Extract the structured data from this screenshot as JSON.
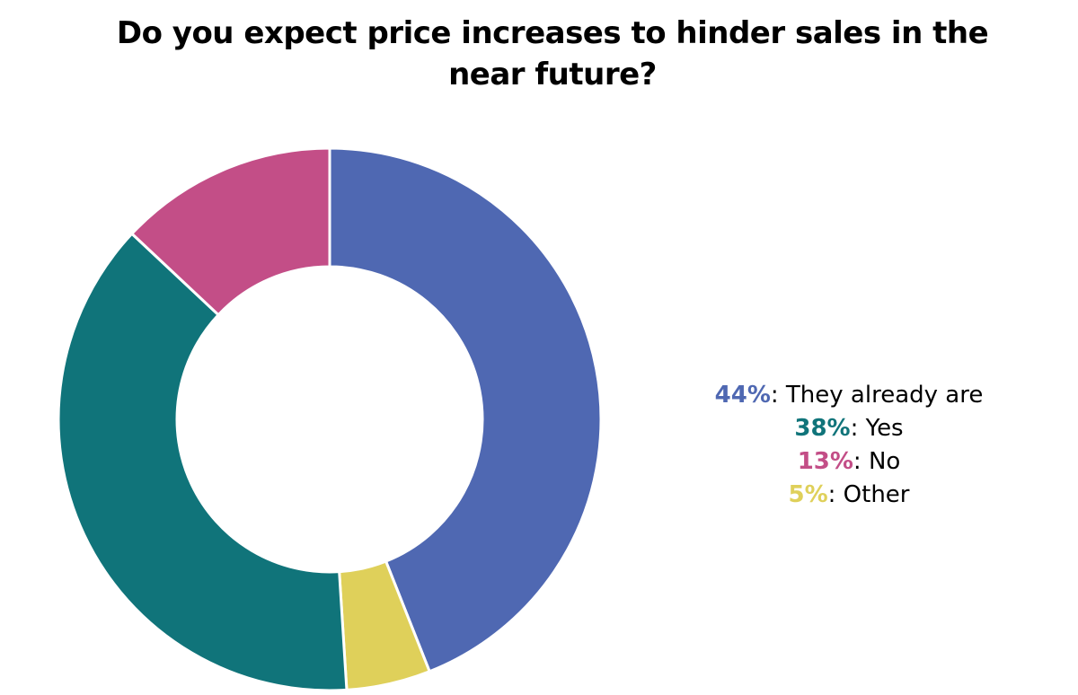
{
  "title": {
    "line1": "Do you expect price increases to hinder sales in the",
    "line2": "near future?"
  },
  "chart_data": {
    "type": "pie",
    "donut": true,
    "title": "Do you expect price increases to hinder sales in the near future?",
    "slices": [
      {
        "label": "They already are",
        "value": 44,
        "pct_text": "44%",
        "color": "#4F68B2"
      },
      {
        "label": "Other",
        "value": 5,
        "pct_text": "5%",
        "color": "#DFD05A"
      },
      {
        "label": "Yes",
        "value": 38,
        "pct_text": "38%",
        "color": "#10747A"
      },
      {
        "label": "No",
        "value": 13,
        "pct_text": "13%",
        "color": "#C34E87"
      }
    ],
    "legend_order": [
      0,
      2,
      3,
      1
    ],
    "legend_placement": "right",
    "start_angle_deg": 0,
    "direction": "clockwise"
  }
}
